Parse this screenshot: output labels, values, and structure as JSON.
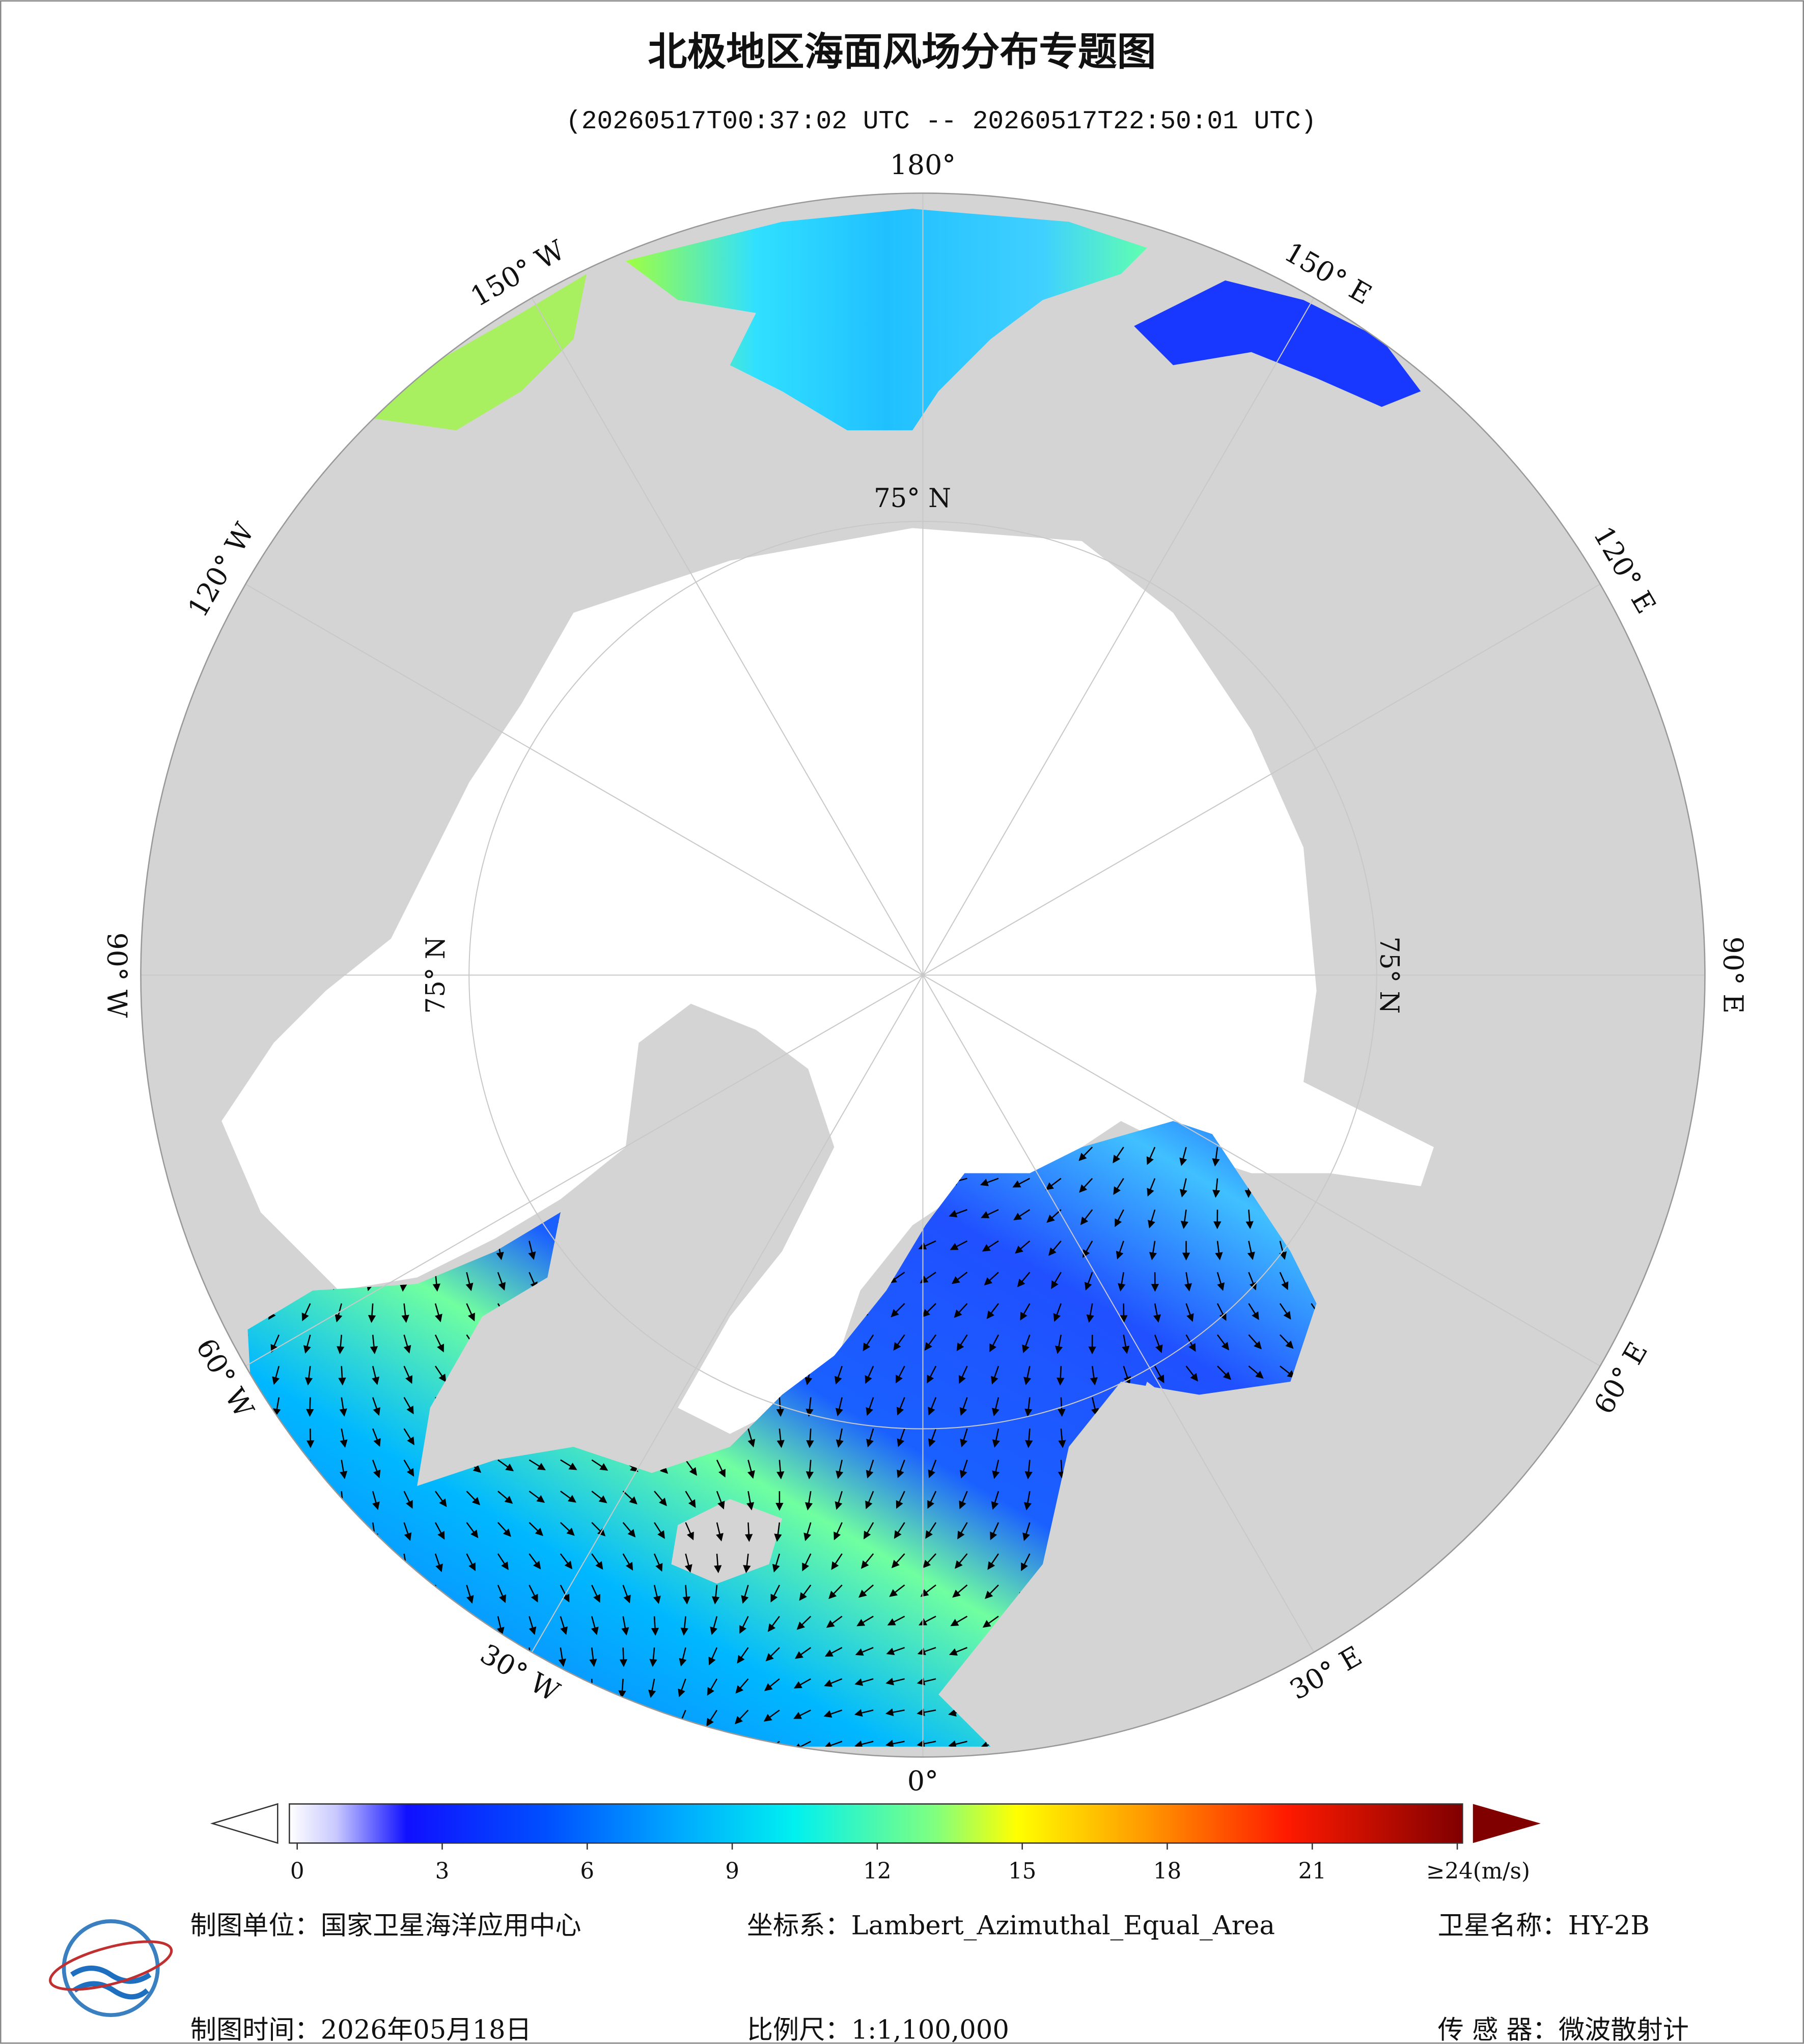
{
  "header": {
    "title": "北极地区海面风场分布专题图",
    "subtitle": "(20260517T00:37:02 UTC -- 20260517T22:50:01 UTC)"
  },
  "map": {
    "lon_labels": [
      {
        "value": 180,
        "label": "180°"
      },
      {
        "value": -150,
        "label": "150° W"
      },
      {
        "value": -120,
        "label": "120° W"
      },
      {
        "value": -90,
        "label": "90° W"
      },
      {
        "value": -60,
        "label": "60° W"
      },
      {
        "value": -30,
        "label": "30° W"
      },
      {
        "value": 0,
        "label": "0°"
      },
      {
        "value": 30,
        "label": "30° E"
      },
      {
        "value": 60,
        "label": "60° E"
      },
      {
        "value": 90,
        "label": "90° E"
      },
      {
        "value": 120,
        "label": "120° E"
      },
      {
        "value": 150,
        "label": "150° E"
      }
    ],
    "lat_circle": {
      "value": 75,
      "label": "75° N"
    }
  },
  "colorbar": {
    "ticks": [
      0,
      3,
      6,
      9,
      12,
      15,
      18,
      21,
      {
        "value": 24,
        "label": "≥24(m/s)"
      }
    ]
  },
  "footer": {
    "unit": "制图单位：国家卫星海洋应用中心",
    "crs": "坐标系：Lambert_Azimuthal_Equal_Area",
    "satellite": "卫星名称：HY-2B",
    "date": "制图时间：2026年05月18日",
    "scale": "比例尺：1:1,100,000",
    "sensor": "传 感 器：微波散射计"
  }
}
